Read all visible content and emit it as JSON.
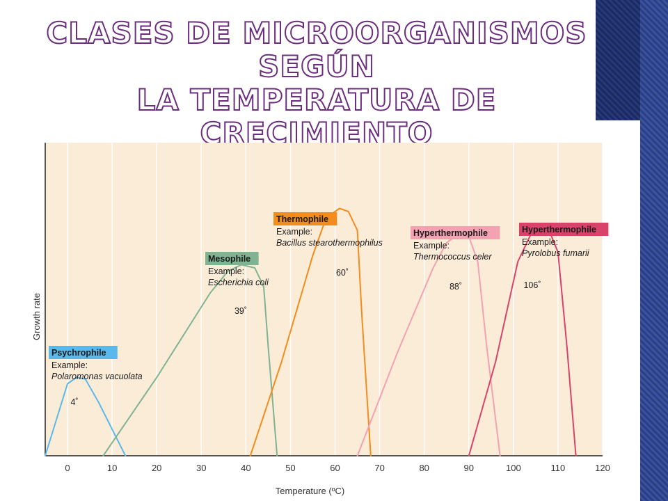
{
  "slide": {
    "title_line1": "Clases de microorganismos según",
    "title_line2": "la temperatura de crecimiento"
  },
  "colors": {
    "plot_background": "#fbecd8",
    "psychrophile": "#5bb8ea",
    "mesophile": "#7fb391",
    "thermophile": "#f28c1c",
    "hyperthermophile_1": "#f2a2b0",
    "hyperthermophile_2": "#d8436a"
  },
  "chart_data": {
    "type": "line",
    "xlabel": "Temperature (ºC)",
    "ylabel": "Growth rate",
    "xlim": [
      -5,
      120
    ],
    "xticks": [
      0,
      10,
      20,
      30,
      40,
      50,
      60,
      70,
      80,
      90,
      100,
      110,
      120
    ],
    "grid": "vertical",
    "series": [
      {
        "name": "Psychrophile",
        "example_label": "Example:",
        "organism": "Polaromonas vacuolata",
        "optimum_label": "4˚",
        "color": "#5bb8ea",
        "points": [
          [
            -5,
            0
          ],
          [
            0,
            0.23
          ],
          [
            2,
            0.25
          ],
          [
            4,
            0.245
          ],
          [
            7,
            0.17
          ],
          [
            13,
            0
          ]
        ]
      },
      {
        "name": "Mesophile",
        "example_label": "Example:",
        "organism": "Escherichia coli",
        "optimum_label": "39˚",
        "color": "#7fb391",
        "points": [
          [
            8,
            0
          ],
          [
            20,
            0.25
          ],
          [
            32,
            0.52
          ],
          [
            36,
            0.59
          ],
          [
            39,
            0.61
          ],
          [
            42,
            0.6
          ],
          [
            44,
            0.54
          ],
          [
            45,
            0.35
          ],
          [
            47,
            0
          ]
        ]
      },
      {
        "name": "Thermophile",
        "example_label": "Example:",
        "organism": "Bacillus stearothermophilus",
        "optimum_label": "60˚",
        "color": "#f28c1c",
        "points": [
          [
            41,
            0
          ],
          [
            48,
            0.3
          ],
          [
            55,
            0.64
          ],
          [
            58,
            0.76
          ],
          [
            61,
            0.79
          ],
          [
            63,
            0.78
          ],
          [
            65,
            0.72
          ],
          [
            66,
            0.45
          ],
          [
            68,
            0
          ]
        ]
      },
      {
        "name": "Hyperthermophile",
        "example_label": "Example:",
        "organism": "Thermococcus celer",
        "optimum_label": "88˚",
        "color": "#f2a2b0",
        "points": [
          [
            65,
            0
          ],
          [
            74,
            0.33
          ],
          [
            82,
            0.6
          ],
          [
            85,
            0.68
          ],
          [
            88,
            0.71
          ],
          [
            90,
            0.7
          ],
          [
            92,
            0.62
          ],
          [
            94,
            0.35
          ],
          [
            97,
            0
          ]
        ]
      },
      {
        "name": "Hyperthermophile",
        "example_label": "Example:",
        "organism": "Pyrolobus fumarii",
        "optimum_label": "106˚",
        "color": "#d8436a",
        "points": [
          [
            90,
            0
          ],
          [
            96,
            0.3
          ],
          [
            101,
            0.62
          ],
          [
            104,
            0.71
          ],
          [
            106,
            0.73
          ],
          [
            108,
            0.72
          ],
          [
            110,
            0.65
          ],
          [
            112,
            0.35
          ],
          [
            114,
            0
          ]
        ]
      }
    ]
  }
}
